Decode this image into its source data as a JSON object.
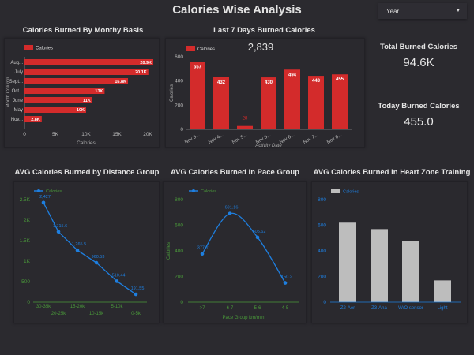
{
  "header": {
    "title": "Calories Wise Analysis",
    "filter": {
      "label": "Year",
      "icon": "caret-down-icon"
    }
  },
  "colors": {
    "red": "#d32b2b",
    "blue": "#1e7fe0",
    "green": "#4a9a3a",
    "gray": "#bdbdbd"
  },
  "kpis": [
    {
      "label": "Total Burned Calories",
      "value": "94.6K"
    },
    {
      "label": "Today Burned Calories",
      "value": "455.0"
    }
  ],
  "chart_data": [
    {
      "type": "bar",
      "orientation": "horizontal",
      "title": "Calories Burned By Monthy Basis",
      "legend": "Calories",
      "xlabel": "Calories",
      "ylabel": "Month Column",
      "categories": [
        "Aug...",
        "July",
        "Sept...",
        "Oct...",
        "June",
        "May",
        "Nov..."
      ],
      "values": [
        20900,
        20100,
        16800,
        13000,
        11000,
        10000,
        2800
      ],
      "data_labels": [
        "20.9K",
        "20.1K",
        "16.8K",
        "13K",
        "11K",
        "10K",
        "2.8K"
      ],
      "xticks": [
        "0",
        "5K",
        "10K",
        "15K",
        "20K"
      ],
      "xlim": [
        0,
        20000
      ]
    },
    {
      "type": "bar",
      "title": "Last 7 Days Burned Calories",
      "legend": "Calories",
      "total": "2,839",
      "xlabel": "Activity Date",
      "ylabel": "Calories",
      "categories": [
        "Nov 3...",
        "Nov 4...",
        "Nov 5...",
        "Nov 5...",
        "Nov 6...",
        "Nov 7...",
        "Nov 8..."
      ],
      "values": [
        557,
        432,
        28,
        430,
        494,
        443,
        455
      ],
      "yticks": [
        "0",
        "200",
        "400",
        "600"
      ],
      "ylim": [
        0,
        600
      ]
    },
    {
      "type": "line",
      "title": "AVG Calories Burned by Distance Group",
      "legend": "Calories",
      "categories": [
        "30-35k",
        "20-25k",
        "15-20k",
        "10-15k",
        "5-10k",
        "0-5k"
      ],
      "values": [
        2427,
        1715.6,
        1265.5,
        960.53,
        510.44,
        191.55
      ],
      "data_labels": [
        "2,427",
        "1,715.6",
        "1,265.5",
        "960.53",
        "510.44",
        "191.55"
      ],
      "yticks": [
        "0",
        "500",
        "1K",
        "1.5K",
        "2K",
        "2.5K"
      ],
      "ylim": [
        0,
        2500
      ]
    },
    {
      "type": "line",
      "title": "AVG Calories Burned in Pace Group",
      "legend": "Calories",
      "xlabel": "Pace Group km/min",
      "ylabel": "Calories",
      "categories": [
        ">7",
        "6-7",
        "5-6",
        "4-5"
      ],
      "values": [
        377.11,
        691.16,
        505.62,
        150.2
      ],
      "data_labels": [
        "377.11",
        "691.16",
        "505.62",
        "150.2"
      ],
      "yticks": [
        "0",
        "200",
        "400",
        "600",
        "800"
      ],
      "ylim": [
        0,
        800
      ]
    },
    {
      "type": "bar",
      "title": "AVG Calories Burned in Heart Zone Training",
      "legend": "Calories",
      "categories": [
        "Z2-Aer",
        "Z3-Ana",
        "W/O sensor",
        "Light"
      ],
      "values": [
        620,
        570,
        480,
        170
      ],
      "yticks": [
        "0",
        "200",
        "400",
        "600",
        "800"
      ],
      "ylim": [
        0,
        800
      ]
    }
  ]
}
